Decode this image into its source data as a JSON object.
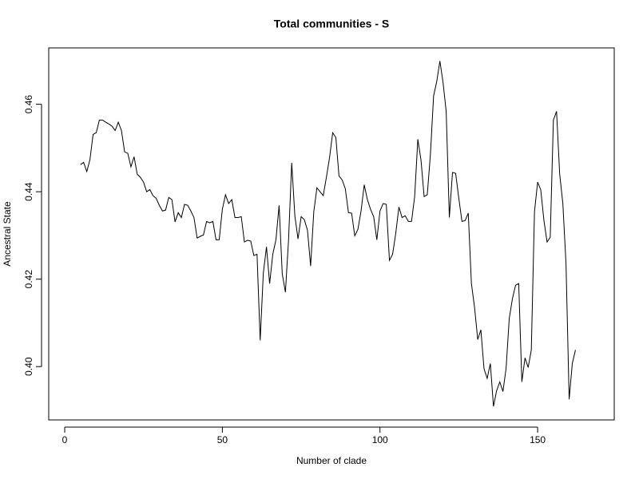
{
  "chart_data": {
    "type": "line",
    "title": "Total communities - S",
    "x_label": "Number of clade",
    "y_label": "Ancestral State",
    "x": [
      5,
      6,
      7,
      8,
      9,
      10,
      11,
      12,
      13,
      14,
      15,
      16,
      17,
      18,
      19,
      20,
      21,
      22,
      23,
      24,
      25,
      26,
      27,
      28,
      29,
      30,
      31,
      32,
      33,
      34,
      35,
      36,
      37,
      38,
      39,
      40,
      41,
      42,
      43,
      44,
      45,
      46,
      47,
      48,
      49,
      50,
      51,
      52,
      53,
      54,
      55,
      56,
      57,
      58,
      59,
      60,
      61,
      62,
      63,
      64,
      65,
      66,
      67,
      68,
      69,
      70,
      71,
      72,
      73,
      74,
      75,
      76,
      77,
      78,
      79,
      80,
      81,
      82,
      83,
      84,
      85,
      86,
      87,
      88,
      89,
      90,
      91,
      92,
      93,
      94,
      95,
      96,
      97,
      98,
      99,
      100,
      101,
      102,
      103,
      104,
      105,
      106,
      107,
      108,
      109,
      110,
      111,
      112,
      113,
      114,
      115,
      116,
      117,
      118,
      119,
      120,
      121,
      122,
      123,
      124,
      125,
      126,
      127,
      128,
      129,
      130,
      131,
      132,
      133,
      134,
      135,
      136,
      137,
      138,
      139,
      140,
      141,
      142,
      143,
      144,
      145,
      146,
      147,
      148,
      149,
      150,
      151,
      152,
      153,
      154,
      155,
      156,
      157,
      158,
      159,
      160,
      161,
      162
    ],
    "series": [
      {
        "name": "Ancestral State",
        "color": "#000000",
        "values": [
          0.4462,
          0.4467,
          0.4446,
          0.4473,
          0.4531,
          0.4535,
          0.4564,
          0.4564,
          0.4559,
          0.4555,
          0.455,
          0.454,
          0.4559,
          0.454,
          0.4491,
          0.4488,
          0.4457,
          0.448,
          0.444,
          0.4433,
          0.4422,
          0.44,
          0.4405,
          0.4391,
          0.4385,
          0.4369,
          0.4356,
          0.4358,
          0.4387,
          0.4382,
          0.4331,
          0.4352,
          0.4341,
          0.4371,
          0.4369,
          0.4356,
          0.4341,
          0.4294,
          0.4298,
          0.4301,
          0.4332,
          0.4329,
          0.4332,
          0.429,
          0.429,
          0.436,
          0.4393,
          0.4373,
          0.4382,
          0.4341,
          0.4341,
          0.4343,
          0.4285,
          0.4289,
          0.4287,
          0.4254,
          0.4257,
          0.406,
          0.4214,
          0.4274,
          0.419,
          0.4257,
          0.429,
          0.4369,
          0.4212,
          0.417,
          0.429,
          0.4466,
          0.4345,
          0.4292,
          0.4343,
          0.4336,
          0.4312,
          0.423,
          0.4354,
          0.4409,
          0.44,
          0.4391,
          0.4433,
          0.4478,
          0.4535,
          0.4524,
          0.4436,
          0.4427,
          0.4407,
          0.4352,
          0.4351,
          0.4299,
          0.4314,
          0.4356,
          0.4416,
          0.4382,
          0.436,
          0.4343,
          0.429,
          0.4356,
          0.4373,
          0.4371,
          0.4243,
          0.4257,
          0.4305,
          0.4365,
          0.4341,
          0.4345,
          0.4332,
          0.4332,
          0.4389,
          0.452,
          0.4473,
          0.4389,
          0.4393,
          0.4486,
          0.4619,
          0.4652,
          0.4699,
          0.465,
          0.4583,
          0.4341,
          0.4444,
          0.4442,
          0.4385,
          0.4332,
          0.4334,
          0.4351,
          0.419,
          0.4135,
          0.4062,
          0.4084,
          0.3995,
          0.3973,
          0.4007,
          0.3909,
          0.3945,
          0.3965,
          0.3943,
          0.3996,
          0.411,
          0.4155,
          0.4186,
          0.419,
          0.3965,
          0.402,
          0.3998,
          0.4038,
          0.4354,
          0.4422,
          0.4404,
          0.4334,
          0.4285,
          0.4296,
          0.4564,
          0.4584,
          0.444,
          0.4373,
          0.4236,
          0.3925,
          0.4007,
          0.4038
        ]
      }
    ],
    "xlim": [
      -5.07,
      174.3
    ],
    "ylim": [
      0.3878,
      0.4729
    ],
    "xticks": [
      0,
      50,
      100,
      150
    ],
    "yticks": [
      {
        "value": 0.4,
        "label": "0.40"
      },
      0.42,
      0.44,
      0.46
    ],
    "grid": false
  }
}
